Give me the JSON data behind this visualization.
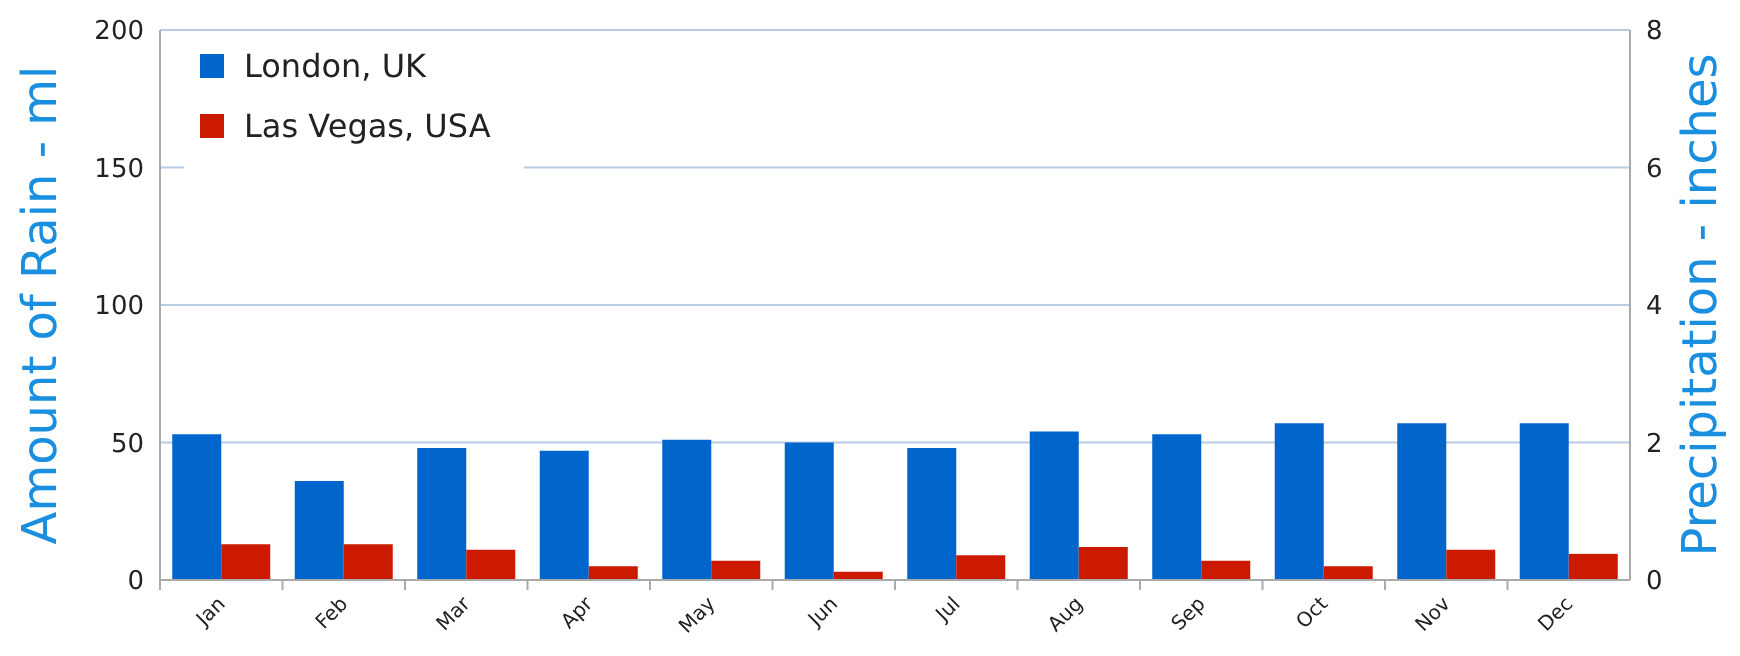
{
  "chart_data": {
    "type": "bar",
    "ylabel": "Amount of Rain - ml",
    "y2label": "Precipitation - inches",
    "categories": [
      "Jan",
      "Feb",
      "Mar",
      "Apr",
      "May",
      "Jun",
      "Jul",
      "Aug",
      "Sep",
      "Oct",
      "Nov",
      "Dec"
    ],
    "series": [
      {
        "name": "London, UK",
        "color": "#0066cc",
        "values": [
          53,
          36,
          48,
          47,
          51,
          50,
          48,
          54,
          53,
          57,
          57,
          57
        ]
      },
      {
        "name": "Las Vegas, USA",
        "color": "#cc1a00",
        "values": [
          13,
          13,
          11,
          5,
          7,
          3,
          9,
          12,
          7,
          5,
          11,
          9.5
        ]
      }
    ],
    "ylim": [
      0,
      200
    ],
    "yticks": [
      0,
      50,
      100,
      150,
      200
    ],
    "y2lim": [
      0,
      8
    ],
    "y2ticks": [
      0,
      2,
      4,
      6,
      8
    ],
    "grid": "y",
    "legend": "top left"
  }
}
